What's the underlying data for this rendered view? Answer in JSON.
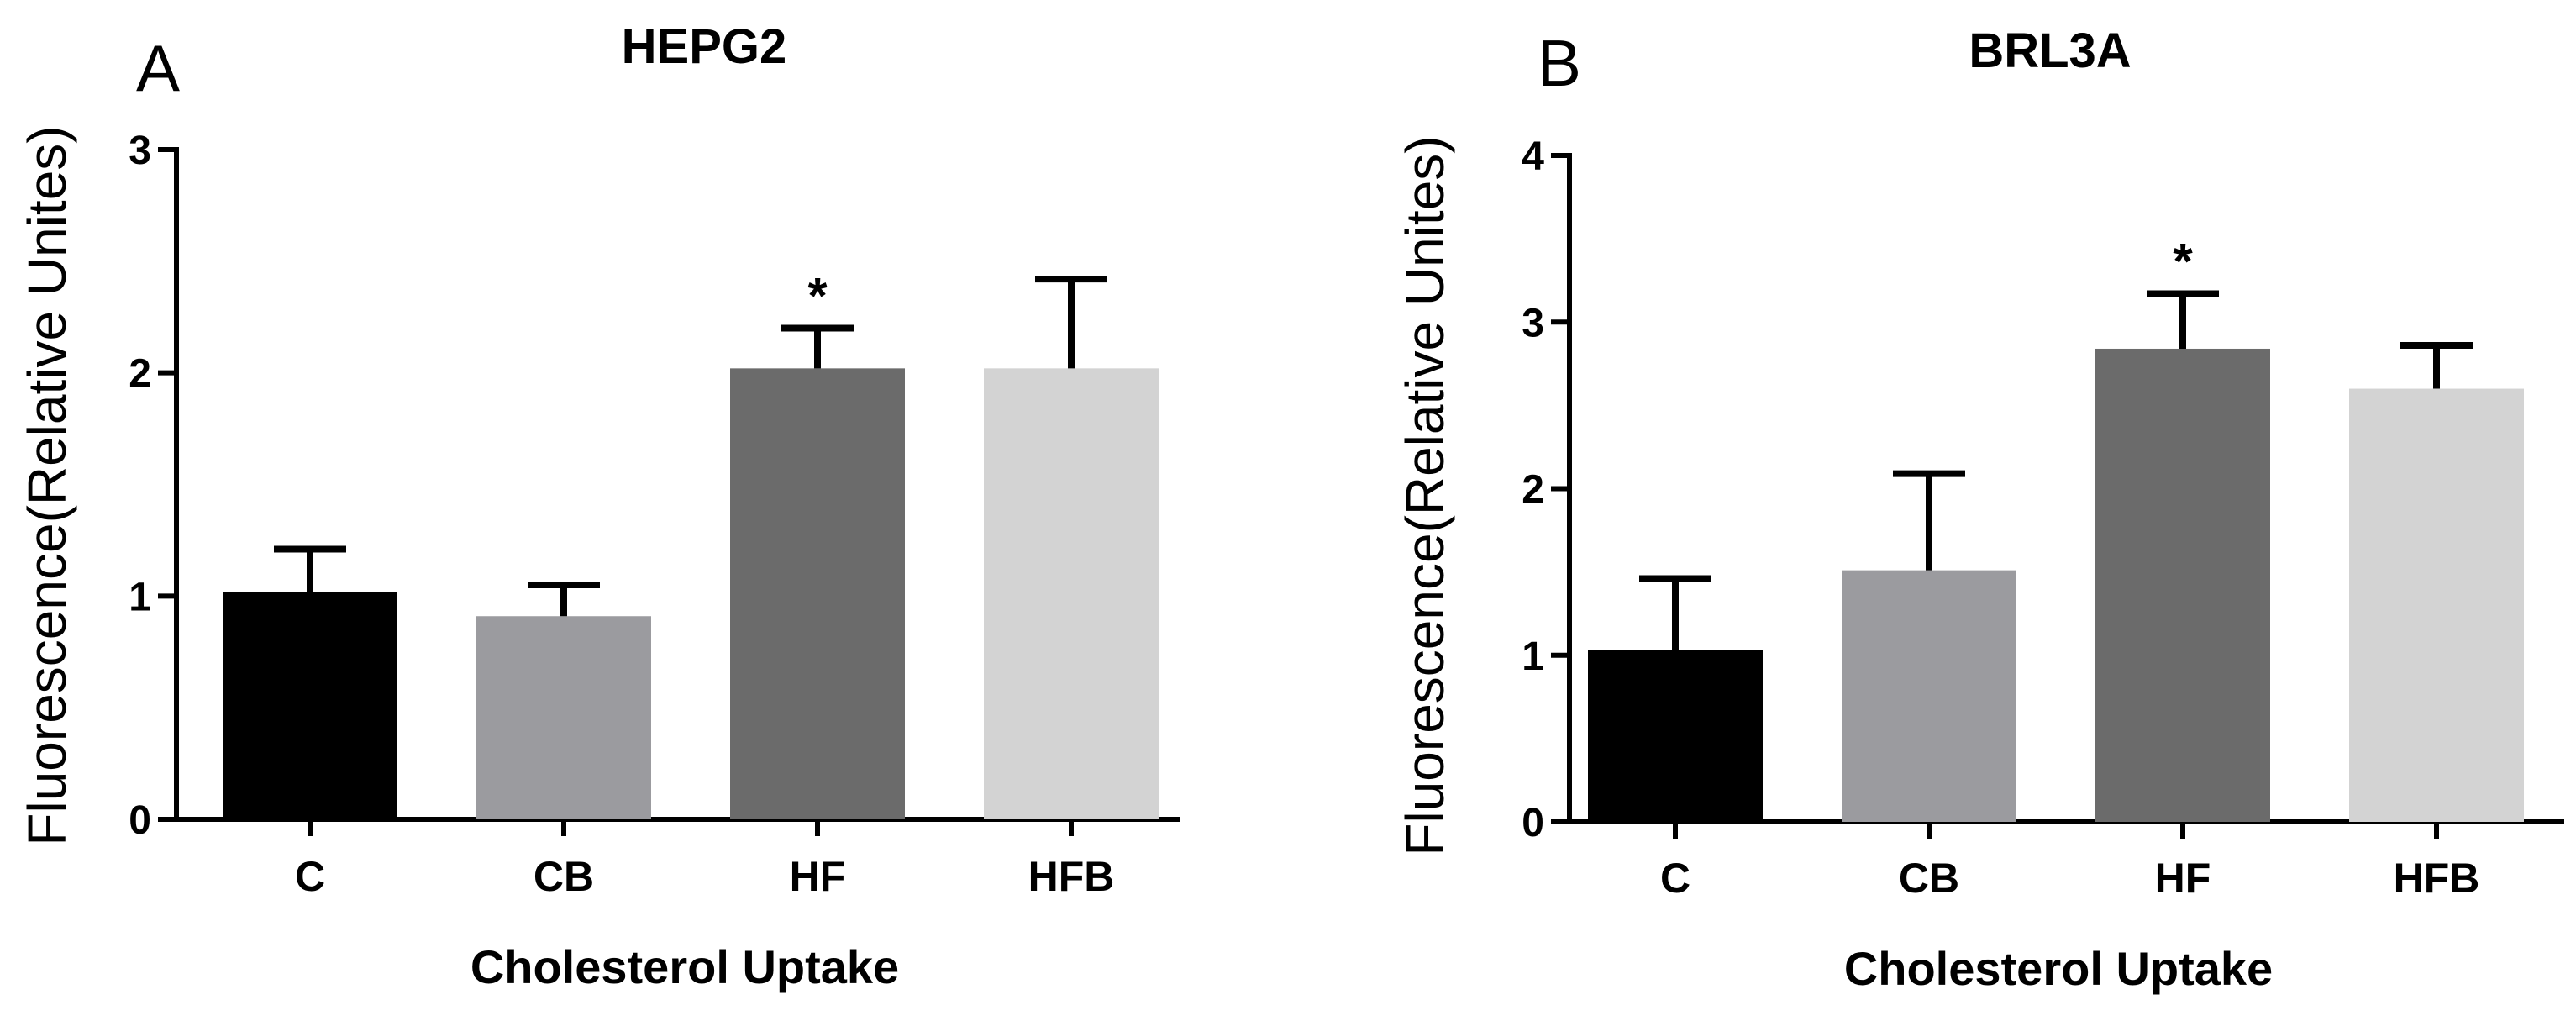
{
  "chart_data": [
    {
      "type": "bar",
      "panel": "A",
      "title": "HEPG2",
      "xlabel": "Cholesterol Uptake",
      "ylabel": "Fluorescence(Relative Unites)",
      "categories": [
        "C",
        "CB",
        "HF",
        "HFB"
      ],
      "values": [
        1.02,
        0.91,
        2.02,
        2.02
      ],
      "errors": [
        0.19,
        0.14,
        0.18,
        0.4
      ],
      "significance": [
        "",
        "",
        "*",
        ""
      ],
      "bar_colors": [
        "#000000",
        "#9b9b9f",
        "#6b6b6b",
        "#d3d3d3"
      ],
      "ylim": [
        0,
        3
      ],
      "yticks": [
        "0",
        "1",
        "2",
        "3"
      ],
      "grid": false
    },
    {
      "type": "bar",
      "panel": "B",
      "title": "BRL3A",
      "xlabel": "Cholesterol Uptake",
      "ylabel": "Fluorescence(Relative Unites)",
      "categories": [
        "C",
        "CB",
        "HF",
        "HFB"
      ],
      "values": [
        1.03,
        1.51,
        2.84,
        2.6
      ],
      "errors": [
        0.43,
        0.58,
        0.33,
        0.26
      ],
      "significance": [
        "",
        "",
        "*",
        ""
      ],
      "bar_colors": [
        "#000000",
        "#9b9b9f",
        "#6b6b6b",
        "#d3d3d3"
      ],
      "ylim": [
        0,
        4
      ],
      "yticks": [
        "0",
        "1",
        "2",
        "3",
        "4"
      ],
      "grid": false
    }
  ]
}
